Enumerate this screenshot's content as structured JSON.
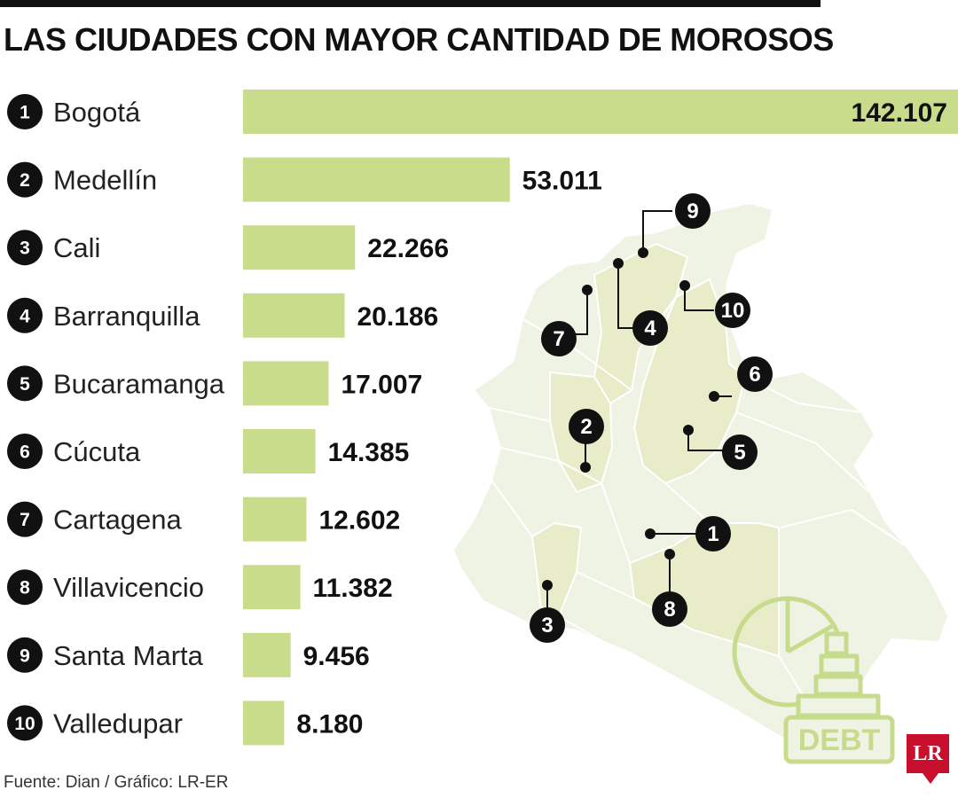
{
  "title": "LAS CIUDADES CON MAYOR CANTIDAD DE MOROSOS",
  "source": "Fuente: Dian / Gráfico: LR-ER",
  "logo_text": "LR",
  "debt_icon_label": "DEBT",
  "colors": {
    "bar": "#c8dc8c",
    "map_base": "#eef3e3",
    "map_highlight": "#e8ecc8",
    "map_border": "#ffffff",
    "badge": "#111111",
    "icon_stroke": "#c6dc8c",
    "logo": "#c8102e"
  },
  "chart_data": {
    "type": "bar",
    "orientation": "horizontal",
    "categories": [
      "Bogotá",
      "Medellín",
      "Cali",
      "Barranquilla",
      "Bucaramanga",
      "Cúcuta",
      "Cartagena",
      "Villavicencio",
      "Santa Marta",
      "Valledupar"
    ],
    "ranks": [
      "1",
      "2",
      "3",
      "4",
      "5",
      "6",
      "7",
      "8",
      "9",
      "10"
    ],
    "values": [
      142107,
      53011,
      22266,
      20186,
      17007,
      14385,
      12602,
      11382,
      9456,
      8180
    ],
    "value_labels": [
      "142.107",
      "53.011",
      "22.266",
      "20.186",
      "17.007",
      "14.385",
      "12.602",
      "11.382",
      "9.456",
      "8.180"
    ],
    "xlim": [
      0,
      142107
    ],
    "grid": false,
    "legend": "none"
  }
}
